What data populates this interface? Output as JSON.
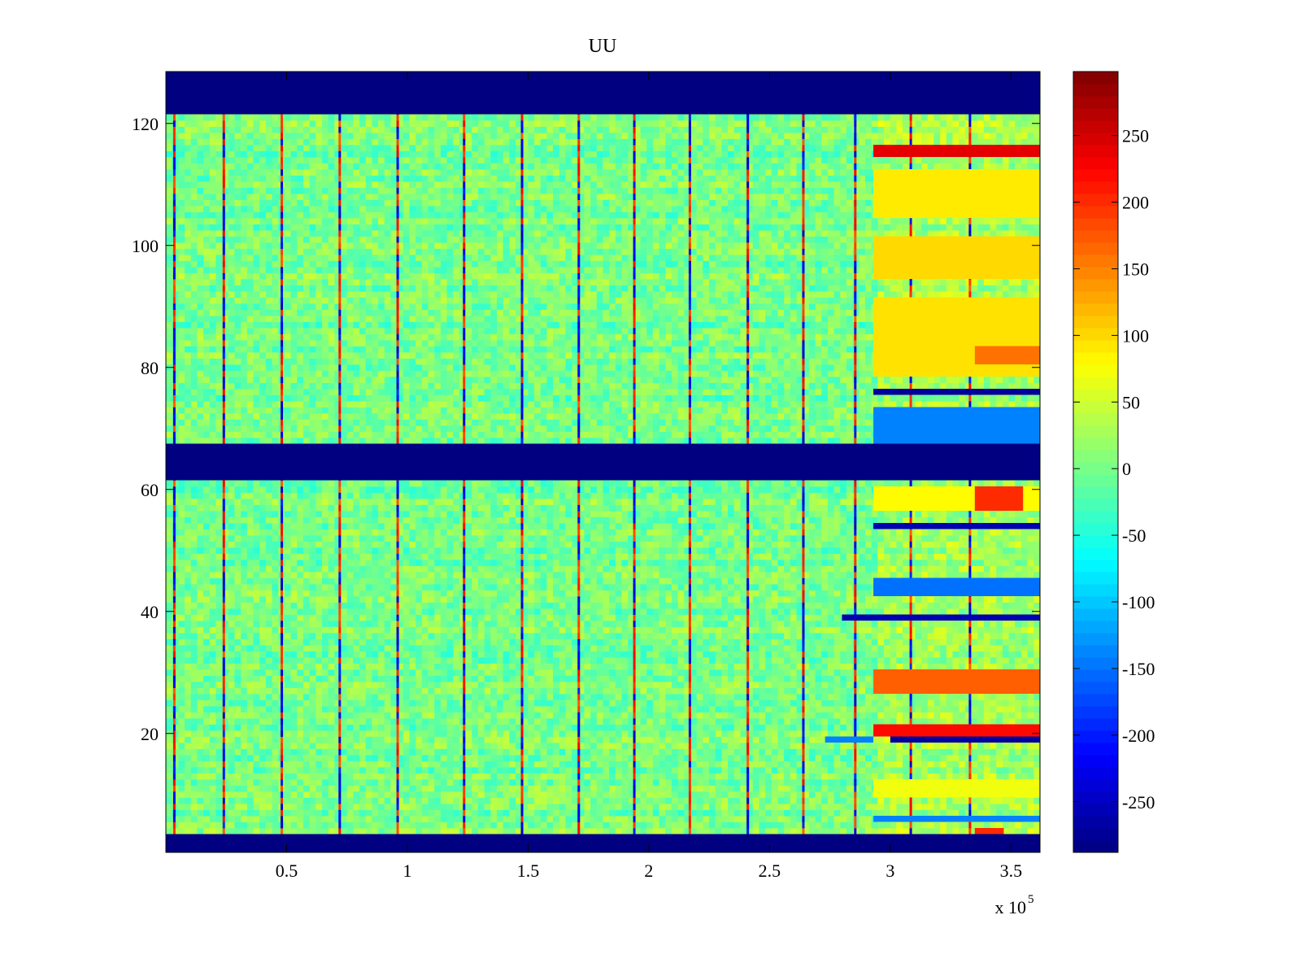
{
  "chart_data": {
    "type": "heatmap",
    "title": "UU",
    "xlabel": "",
    "ylabel": "",
    "x_multiplier": "x 10",
    "x_multiplier_exponent": "5",
    "xlim": [
      0,
      3.62
    ],
    "ylim": [
      0.5,
      128.5
    ],
    "x_ticks": [
      {
        "value": 0.5,
        "label": "0.5"
      },
      {
        "value": 1,
        "label": "1"
      },
      {
        "value": 1.5,
        "label": "1.5"
      },
      {
        "value": 2,
        "label": "2"
      },
      {
        "value": 2.5,
        "label": "2.5"
      },
      {
        "value": 3,
        "label": "3"
      },
      {
        "value": 3.5,
        "label": "3.5"
      }
    ],
    "y_ticks": [
      {
        "value": 20,
        "label": "20"
      },
      {
        "value": 40,
        "label": "40"
      },
      {
        "value": 60,
        "label": "60"
      },
      {
        "value": 80,
        "label": "80"
      },
      {
        "value": 100,
        "label": "100"
      },
      {
        "value": 120,
        "label": "120"
      }
    ],
    "colorbar": {
      "colormap": "jet",
      "range": [
        -288,
        298
      ],
      "ticks": [
        {
          "value": 250,
          "label": "250"
        },
        {
          "value": 200,
          "label": "200"
        },
        {
          "value": 150,
          "label": "150"
        },
        {
          "value": 100,
          "label": "100"
        },
        {
          "value": 50,
          "label": "50"
        },
        {
          "value": 0,
          "label": "0"
        },
        {
          "value": -50,
          "label": "-50"
        },
        {
          "value": -100,
          "label": "-100"
        },
        {
          "value": -150,
          "label": "-150"
        },
        {
          "value": -200,
          "label": "-200"
        },
        {
          "value": -250,
          "label": "-250"
        }
      ]
    },
    "empty_channel_bands": [
      [
        0.5,
        3.5
      ],
      [
        61.5,
        67.5
      ],
      [
        121.5,
        128.5
      ]
    ],
    "background_value": 0,
    "stripe_x": [
      0.035,
      0.24,
      0.48,
      0.72,
      0.96,
      1.235,
      1.475,
      1.71,
      1.94,
      2.17,
      2.41,
      2.64,
      2.855,
      3.085,
      3.33
    ],
    "late_segment_start_x": 2.93,
    "regions": [
      {
        "x": [
          2.93,
          3.62
        ],
        "y": [
          114.5,
          116.5
        ],
        "value": 240
      },
      {
        "x": [
          2.93,
          3.62
        ],
        "y": [
          104.5,
          112.5
        ],
        "value": 90
      },
      {
        "x": [
          2.93,
          3.62
        ],
        "y": [
          94.5,
          101.5
        ],
        "value": 100
      },
      {
        "x": [
          2.93,
          3.62
        ],
        "y": [
          78.5,
          91.5
        ],
        "value": 95
      },
      {
        "x": [
          3.35,
          3.62
        ],
        "y": [
          80.5,
          83.5
        ],
        "value": 160
      },
      {
        "x": [
          2.93,
          3.62
        ],
        "y": [
          75.5,
          76.5
        ],
        "value": -270
      },
      {
        "x": [
          2.93,
          3.62
        ],
        "y": [
          67.5,
          73.5
        ],
        "value": -140
      },
      {
        "x": [
          2.93,
          3.62
        ],
        "y": [
          56.5,
          60.5
        ],
        "value": 80
      },
      {
        "x": [
          3.35,
          3.55
        ],
        "y": [
          56.5,
          60.5
        ],
        "value": 200
      },
      {
        "x": [
          2.93,
          3.62
        ],
        "y": [
          53.5,
          54.5
        ],
        "value": -260
      },
      {
        "x": [
          2.93,
          3.62
        ],
        "y": [
          42.5,
          45.5
        ],
        "value": -150
      },
      {
        "x": [
          2.8,
          3.62
        ],
        "y": [
          38.5,
          39.5
        ],
        "value": -260
      },
      {
        "x": [
          2.93,
          3.62
        ],
        "y": [
          26.5,
          30.5
        ],
        "value": 170
      },
      {
        "x": [
          2.93,
          3.62
        ],
        "y": [
          19.5,
          21.5
        ],
        "value": 220
      },
      {
        "x": [
          3.0,
          3.62
        ],
        "y": [
          18.5,
          19.5
        ],
        "value": -270
      },
      {
        "x": [
          2.73,
          2.93
        ],
        "y": [
          18.5,
          19.5
        ],
        "value": -140
      },
      {
        "x": [
          2.93,
          3.62
        ],
        "y": [
          9.5,
          12.5
        ],
        "value": 70
      },
      {
        "x": [
          2.93,
          3.62
        ],
        "y": [
          5.5,
          6.5
        ],
        "value": -140
      },
      {
        "x": [
          3.35,
          3.47
        ],
        "y": [
          3.5,
          4.5
        ],
        "value": 200
      }
    ]
  }
}
